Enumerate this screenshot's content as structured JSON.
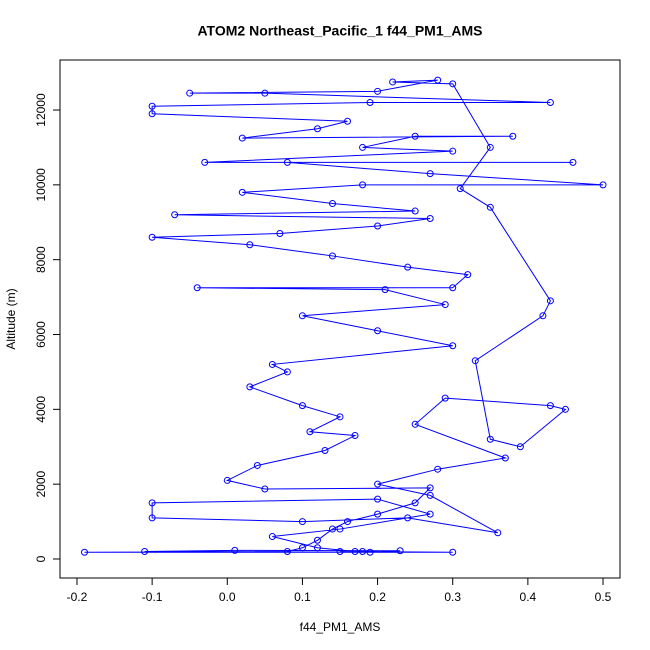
{
  "chart_data": {
    "type": "line",
    "markers": true,
    "title": "ATOM2 Northeast_Pacific_1 f44_PM1_AMS",
    "x_label": "f44_PM1_AMS",
    "y_label": "Altitude (m)",
    "xlim": [
      -0.2226,
      0.5226
    ],
    "ylim": [
      -508,
      13337
    ],
    "xticks": [
      -0.2,
      -0.1,
      {
        "value": 0,
        "label": "0.0"
      },
      0.1,
      0.2,
      0.3,
      0.4,
      0.5
    ],
    "yticks": [
      0,
      2000,
      4000,
      6000,
      8000,
      10000,
      12000
    ],
    "x": [
      0.18,
      0.15,
      0.3,
      -0.19,
      0.08,
      0.1,
      0.12,
      0.14,
      0.16,
      0.2,
      0.25,
      0.27,
      0.05,
      0.0,
      0.04,
      0.13,
      0.17,
      0.11,
      0.15,
      0.1,
      0.03,
      0.08,
      0.06,
      0.3,
      0.2,
      0.1,
      0.29,
      0.21,
      -0.04,
      0.3,
      0.32,
      0.24,
      0.14,
      0.03,
      -0.1,
      0.07,
      0.2,
      0.27,
      -0.07,
      0.25,
      0.14,
      0.02,
      0.18,
      0.5,
      0.27,
      0.08,
      0.46,
      -0.03,
      0.3,
      0.18,
      0.25,
      0.38,
      0.02,
      0.12,
      0.16,
      -0.1,
      -0.1,
      0.19,
      0.43,
      0.05,
      -0.05,
      0.2,
      0.28,
      0.22,
      0.3,
      0.35,
      0.31,
      0.35,
      0.43,
      0.42,
      0.33,
      0.35,
      0.39,
      0.45,
      0.43,
      0.29,
      0.25,
      0.37,
      0.28,
      0.2,
      0.27,
      0.36,
      0.24,
      0.1,
      -0.1,
      -0.1,
      0.2,
      0.27,
      0.15,
      0.06,
      0.12,
      0.17,
      0.23,
      0.01,
      -0.11,
      0.19
    ],
    "series": [
      {
        "color": "#0000ff",
        "values": [
          200,
          200,
          180,
          180,
          200,
          300,
          500,
          800,
          1000,
          1200,
          1500,
          1900,
          1870,
          2100,
          2500,
          2900,
          3300,
          3400,
          3800,
          4100,
          4600,
          5000,
          5200,
          5700,
          6100,
          6500,
          6800,
          7200,
          7250,
          7250,
          7600,
          7800,
          8100,
          8400,
          8600,
          8700,
          8900,
          9100,
          9200,
          9300,
          9500,
          9800,
          10000,
          10000,
          10300,
          10600,
          10600,
          10600,
          10900,
          11000,
          11300,
          11300,
          11250,
          11500,
          11700,
          11900,
          12100,
          12200,
          12200,
          12450,
          12450,
          12500,
          12800,
          12750,
          12700,
          11000,
          9900,
          9400,
          6900,
          6500,
          5300,
          3200,
          3000,
          4000,
          4100,
          4300,
          3600,
          2700,
          2400,
          2000,
          1700,
          700,
          1100,
          1000,
          1100,
          1500,
          1600,
          1200,
          800,
          600,
          300,
          200,
          220,
          230,
          200,
          180
        ]
      }
    ]
  }
}
